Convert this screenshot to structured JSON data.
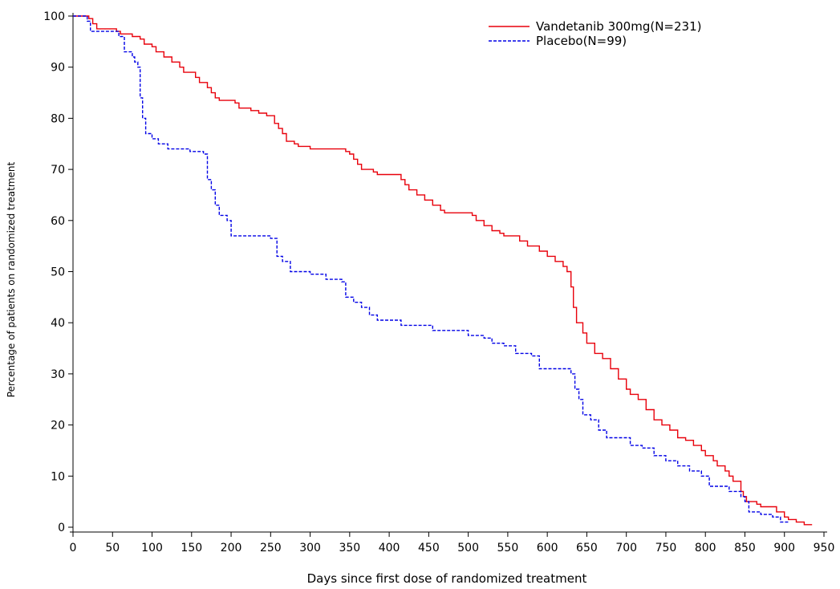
{
  "chart_data": {
    "type": "line",
    "title": "",
    "xlabel": "Days since first dose of randomized treatment",
    "ylabel": "Percentage of patients on randomized treatment",
    "xlim": [
      0,
      950
    ],
    "ylim": [
      0,
      100
    ],
    "x_ticks": [
      "0",
      "50",
      "100",
      "150",
      "200",
      "250",
      "300",
      "350",
      "400",
      "450",
      "500",
      "550",
      "600",
      "650",
      "700",
      "750",
      "800",
      "850",
      "900",
      "950"
    ],
    "y_ticks": [
      "0",
      "10",
      "20",
      "30",
      "40",
      "50",
      "60",
      "70",
      "80",
      "90",
      "100"
    ],
    "grid": false,
    "legend": "top-right",
    "step": true,
    "series": [
      {
        "name": "Vandetanib 300mg(N=231)",
        "color": "#e8000b",
        "dash": "solid",
        "points": [
          [
            0,
            100
          ],
          [
            20,
            99.5
          ],
          [
            25,
            98.5
          ],
          [
            30,
            97.5
          ],
          [
            55,
            97
          ],
          [
            60,
            96.5
          ],
          [
            75,
            96
          ],
          [
            85,
            95.5
          ],
          [
            90,
            94.5
          ],
          [
            100,
            94
          ],
          [
            105,
            93
          ],
          [
            115,
            92
          ],
          [
            125,
            91
          ],
          [
            135,
            90
          ],
          [
            140,
            89
          ],
          [
            155,
            88
          ],
          [
            160,
            87
          ],
          [
            170,
            86
          ],
          [
            175,
            85
          ],
          [
            180,
            84
          ],
          [
            185,
            83.5
          ],
          [
            205,
            83
          ],
          [
            210,
            82
          ],
          [
            225,
            81.5
          ],
          [
            235,
            81
          ],
          [
            245,
            80.5
          ],
          [
            255,
            79
          ],
          [
            260,
            78
          ],
          [
            265,
            77
          ],
          [
            270,
            75.5
          ],
          [
            280,
            75
          ],
          [
            285,
            74.5
          ],
          [
            300,
            74
          ],
          [
            345,
            73.5
          ],
          [
            350,
            73
          ],
          [
            355,
            72
          ],
          [
            360,
            71
          ],
          [
            365,
            70
          ],
          [
            380,
            69.5
          ],
          [
            385,
            69
          ],
          [
            415,
            68
          ],
          [
            420,
            67
          ],
          [
            425,
            66
          ],
          [
            435,
            65
          ],
          [
            445,
            64
          ],
          [
            455,
            63
          ],
          [
            465,
            62
          ],
          [
            470,
            61.5
          ],
          [
            505,
            61
          ],
          [
            510,
            60
          ],
          [
            520,
            59
          ],
          [
            530,
            58
          ],
          [
            540,
            57.5
          ],
          [
            545,
            57
          ],
          [
            565,
            56
          ],
          [
            575,
            55
          ],
          [
            590,
            54
          ],
          [
            600,
            53
          ],
          [
            610,
            52
          ],
          [
            620,
            51
          ],
          [
            625,
            50
          ],
          [
            630,
            47
          ],
          [
            633,
            43
          ],
          [
            637,
            40
          ],
          [
            645,
            38
          ],
          [
            650,
            36
          ],
          [
            660,
            34
          ],
          [
            670,
            33
          ],
          [
            680,
            31
          ],
          [
            690,
            29
          ],
          [
            700,
            27
          ],
          [
            705,
            26
          ],
          [
            715,
            25
          ],
          [
            725,
            23
          ],
          [
            735,
            21
          ],
          [
            745,
            20
          ],
          [
            755,
            19
          ],
          [
            765,
            17.5
          ],
          [
            775,
            17
          ],
          [
            785,
            16
          ],
          [
            795,
            15
          ],
          [
            800,
            14
          ],
          [
            810,
            13
          ],
          [
            815,
            12
          ],
          [
            825,
            11
          ],
          [
            830,
            10
          ],
          [
            835,
            9
          ],
          [
            845,
            7
          ],
          [
            848,
            6
          ],
          [
            852,
            5
          ],
          [
            865,
            4.5
          ],
          [
            870,
            4
          ],
          [
            890,
            3
          ],
          [
            900,
            2
          ],
          [
            905,
            1.5
          ],
          [
            915,
            1
          ],
          [
            925,
            0.5
          ],
          [
            935,
            0.5
          ]
        ]
      },
      {
        "name": "Placebo(N=99)",
        "color": "#0000e6",
        "dash": "dashed",
        "points": [
          [
            0,
            100
          ],
          [
            18,
            99
          ],
          [
            22,
            97
          ],
          [
            50,
            97
          ],
          [
            58,
            96
          ],
          [
            65,
            93
          ],
          [
            75,
            92
          ],
          [
            78,
            91
          ],
          [
            82,
            90
          ],
          [
            85,
            84
          ],
          [
            88,
            80
          ],
          [
            92,
            77
          ],
          [
            100,
            76
          ],
          [
            108,
            75
          ],
          [
            120,
            74
          ],
          [
            148,
            73.5
          ],
          [
            165,
            73
          ],
          [
            170,
            68
          ],
          [
            175,
            66
          ],
          [
            180,
            63
          ],
          [
            185,
            61
          ],
          [
            195,
            60
          ],
          [
            200,
            57
          ],
          [
            250,
            56.5
          ],
          [
            258,
            53
          ],
          [
            265,
            52
          ],
          [
            275,
            50
          ],
          [
            300,
            49.5
          ],
          [
            320,
            48.5
          ],
          [
            340,
            48
          ],
          [
            345,
            45
          ],
          [
            355,
            44
          ],
          [
            365,
            43
          ],
          [
            375,
            41.5
          ],
          [
            385,
            40.5
          ],
          [
            415,
            39.5
          ],
          [
            455,
            38.5
          ],
          [
            500,
            37.5
          ],
          [
            520,
            37
          ],
          [
            530,
            36
          ],
          [
            545,
            35.5
          ],
          [
            560,
            34
          ],
          [
            580,
            33.5
          ],
          [
            590,
            31
          ],
          [
            630,
            30
          ],
          [
            635,
            27
          ],
          [
            640,
            25
          ],
          [
            645,
            22
          ],
          [
            655,
            21
          ],
          [
            665,
            19
          ],
          [
            675,
            17.5
          ],
          [
            705,
            16
          ],
          [
            720,
            15.5
          ],
          [
            735,
            14
          ],
          [
            750,
            13
          ],
          [
            765,
            12
          ],
          [
            780,
            11
          ],
          [
            795,
            10
          ],
          [
            805,
            8
          ],
          [
            830,
            7
          ],
          [
            845,
            6
          ],
          [
            850,
            5
          ],
          [
            855,
            3
          ],
          [
            870,
            2.5
          ],
          [
            885,
            2
          ],
          [
            895,
            1
          ],
          [
            905,
            1
          ]
        ]
      }
    ]
  }
}
